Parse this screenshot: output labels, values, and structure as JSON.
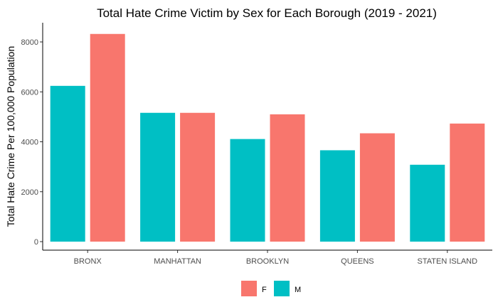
{
  "chart_data": {
    "type": "bar",
    "title": "Total Hate Crime Victim by Sex for Each Borough (2019 - 2021)",
    "xlabel": "",
    "ylabel": "Total Hate Crime Per 100,000 Population",
    "categories": [
      "BRONX",
      "MANHATTAN",
      "BROOKLYN",
      "QUEENS",
      "STATEN ISLAND"
    ],
    "series": [
      {
        "name": "M",
        "color": "#00BFC4",
        "values": [
          6240,
          5160,
          4110,
          3660,
          3080
        ]
      },
      {
        "name": "F",
        "color": "#F8766D",
        "values": [
          8320,
          5160,
          5100,
          4340,
          4730
        ]
      }
    ],
    "yticks": [
      0,
      2000,
      4000,
      6000,
      8000
    ],
    "ytick_labels": [
      "0",
      "2000",
      "4000",
      "6000",
      "8000"
    ],
    "ylim": [
      0,
      8750
    ],
    "grid": false,
    "legend": {
      "position": "bottom",
      "entries": [
        {
          "label": "F",
          "color": "#F8766D"
        },
        {
          "label": "M",
          "color": "#00BFC4"
        }
      ]
    }
  }
}
